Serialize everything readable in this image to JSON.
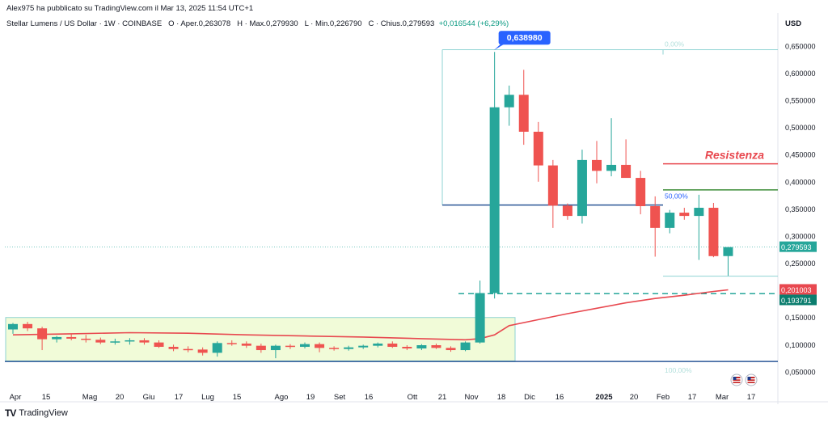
{
  "attribution": "Alex975 ha pubblicato su TradingView.com il Mar 13, 2025 11:54 UTC+1",
  "legend": {
    "symbol": "Stellar Lumens / US Dollar · 1W · COINBASE",
    "open": "O · Aper.0,263078",
    "high": "H · Max.0,279930",
    "low": "L · Min.0,226790",
    "close": "C · Chius.0,279593",
    "change": "+0,016544 (+6,29%)"
  },
  "axis_currency": "USD",
  "brand": "TradingView",
  "chart_data": {
    "type": "candlestick",
    "ylim": [
      0.035,
      0.675
    ],
    "y_ticks": [
      "0,650000",
      "0,600000",
      "0,550000",
      "0,500000",
      "0,450000",
      "0,400000",
      "0,350000",
      "0,300000",
      "0,250000",
      "0,200000",
      "0,150000",
      "0,100000",
      "0,050000"
    ],
    "x_labels": [
      "Apr",
      "15",
      "Mag",
      "20",
      "Giu",
      "17",
      "Lug",
      "15",
      "Ago",
      "19",
      "Set",
      "16",
      "Ott",
      "21",
      "Nov",
      "18",
      "Dic",
      "16",
      "2025",
      "20",
      "Feb",
      "17",
      "Mar",
      "17"
    ],
    "candles": [
      {
        "o": 0.128,
        "h": 0.14,
        "l": 0.12,
        "c": 0.138
      },
      {
        "o": 0.138,
        "h": 0.142,
        "l": 0.125,
        "c": 0.13
      },
      {
        "o": 0.13,
        "h": 0.133,
        "l": 0.09,
        "c": 0.11
      },
      {
        "o": 0.11,
        "h": 0.116,
        "l": 0.104,
        "c": 0.114
      },
      {
        "o": 0.114,
        "h": 0.12,
        "l": 0.108,
        "c": 0.111
      },
      {
        "o": 0.111,
        "h": 0.118,
        "l": 0.104,
        "c": 0.109
      },
      {
        "o": 0.109,
        "h": 0.113,
        "l": 0.101,
        "c": 0.104
      },
      {
        "o": 0.104,
        "h": 0.111,
        "l": 0.1,
        "c": 0.106
      },
      {
        "o": 0.106,
        "h": 0.112,
        "l": 0.1,
        "c": 0.108
      },
      {
        "o": 0.108,
        "h": 0.112,
        "l": 0.1,
        "c": 0.104
      },
      {
        "o": 0.104,
        "h": 0.108,
        "l": 0.094,
        "c": 0.096
      },
      {
        "o": 0.096,
        "h": 0.1,
        "l": 0.088,
        "c": 0.092
      },
      {
        "o": 0.092,
        "h": 0.097,
        "l": 0.086,
        "c": 0.091
      },
      {
        "o": 0.091,
        "h": 0.095,
        "l": 0.08,
        "c": 0.085
      },
      {
        "o": 0.085,
        "h": 0.106,
        "l": 0.078,
        "c": 0.103
      },
      {
        "o": 0.103,
        "h": 0.108,
        "l": 0.098,
        "c": 0.102
      },
      {
        "o": 0.102,
        "h": 0.106,
        "l": 0.094,
        "c": 0.098
      },
      {
        "o": 0.098,
        "h": 0.102,
        "l": 0.085,
        "c": 0.09
      },
      {
        "o": 0.09,
        "h": 0.1,
        "l": 0.075,
        "c": 0.098
      },
      {
        "o": 0.098,
        "h": 0.101,
        "l": 0.092,
        "c": 0.096
      },
      {
        "o": 0.096,
        "h": 0.104,
        "l": 0.093,
        "c": 0.101
      },
      {
        "o": 0.101,
        "h": 0.104,
        "l": 0.086,
        "c": 0.094
      },
      {
        "o": 0.094,
        "h": 0.097,
        "l": 0.089,
        "c": 0.092
      },
      {
        "o": 0.092,
        "h": 0.098,
        "l": 0.089,
        "c": 0.095
      },
      {
        "o": 0.095,
        "h": 0.1,
        "l": 0.092,
        "c": 0.098
      },
      {
        "o": 0.098,
        "h": 0.104,
        "l": 0.095,
        "c": 0.102
      },
      {
        "o": 0.102,
        "h": 0.106,
        "l": 0.094,
        "c": 0.096
      },
      {
        "o": 0.096,
        "h": 0.099,
        "l": 0.09,
        "c": 0.093
      },
      {
        "o": 0.093,
        "h": 0.101,
        "l": 0.09,
        "c": 0.099
      },
      {
        "o": 0.099,
        "h": 0.102,
        "l": 0.092,
        "c": 0.094
      },
      {
        "o": 0.094,
        "h": 0.097,
        "l": 0.087,
        "c": 0.09
      },
      {
        "o": 0.09,
        "h": 0.106,
        "l": 0.088,
        "c": 0.104
      },
      {
        "o": 0.104,
        "h": 0.218,
        "l": 0.102,
        "c": 0.195
      },
      {
        "o": 0.195,
        "h": 0.63898,
        "l": 0.185,
        "c": 0.537
      },
      {
        "o": 0.537,
        "h": 0.577,
        "l": 0.503,
        "c": 0.56
      },
      {
        "o": 0.56,
        "h": 0.606,
        "l": 0.468,
        "c": 0.492
      },
      {
        "o": 0.492,
        "h": 0.51,
        "l": 0.4,
        "c": 0.43
      },
      {
        "o": 0.43,
        "h": 0.44,
        "l": 0.315,
        "c": 0.356
      },
      {
        "o": 0.356,
        "h": 0.36,
        "l": 0.33,
        "c": 0.337
      },
      {
        "o": 0.337,
        "h": 0.459,
        "l": 0.323,
        "c": 0.44
      },
      {
        "o": 0.44,
        "h": 0.475,
        "l": 0.397,
        "c": 0.42
      },
      {
        "o": 0.42,
        "h": 0.517,
        "l": 0.41,
        "c": 0.431
      },
      {
        "o": 0.431,
        "h": 0.478,
        "l": 0.41,
        "c": 0.407
      },
      {
        "o": 0.407,
        "h": 0.42,
        "l": 0.34,
        "c": 0.355
      },
      {
        "o": 0.355,
        "h": 0.373,
        "l": 0.262,
        "c": 0.315
      },
      {
        "o": 0.315,
        "h": 0.348,
        "l": 0.305,
        "c": 0.343
      },
      {
        "o": 0.343,
        "h": 0.352,
        "l": 0.33,
        "c": 0.337
      },
      {
        "o": 0.337,
        "h": 0.376,
        "l": 0.256,
        "c": 0.352
      },
      {
        "o": 0.352,
        "h": 0.361,
        "l": 0.261,
        "c": 0.263
      },
      {
        "o": 0.263078,
        "h": 0.27993,
        "l": 0.22679,
        "c": 0.279593
      }
    ],
    "moving_average": [
      [
        0,
        0.118
      ],
      [
        4,
        0.12
      ],
      [
        8,
        0.122
      ],
      [
        12,
        0.121
      ],
      [
        16,
        0.118
      ],
      [
        20,
        0.116
      ],
      [
        24,
        0.114
      ],
      [
        28,
        0.111
      ],
      [
        31,
        0.109
      ],
      [
        32,
        0.111
      ],
      [
        33,
        0.118
      ],
      [
        34,
        0.135
      ],
      [
        36,
        0.146
      ],
      [
        38,
        0.157
      ],
      [
        40,
        0.167
      ],
      [
        42,
        0.177
      ],
      [
        44,
        0.185
      ],
      [
        46,
        0.191
      ],
      [
        48,
        0.198
      ],
      [
        49,
        0.201003
      ]
    ],
    "tags": {
      "current_price": "0,279593",
      "ma_value": "0,201003",
      "support_value": "0,193791",
      "high_callout": "0,638980"
    },
    "annotations": {
      "resistance_label": "Resistenza",
      "fib_0": "0,00%",
      "fib_50": "50,00%",
      "fib_100": "100,00%"
    },
    "levels": {
      "resistance": 0.433,
      "upper_green": 0.385,
      "mid_blue": 0.357,
      "support_dashed": 0.193791,
      "bottom_blue": 0.069,
      "fib_top": 0.643,
      "fib_low": 0.226,
      "current_price": 0.279593
    },
    "range_box": {
      "y_top": 0.15,
      "y_bottom": 0.07
    },
    "colors": {
      "up": "#26a69a",
      "down": "#ef5350",
      "ma": "#e8484f",
      "resistance": "#e8484f",
      "green_line": "#3e8e3a",
      "blue_line": "#2b5797",
      "support": "#26a69a",
      "fib": "#8fd3d3",
      "box_fill": "#f1fbd8",
      "box_stroke": "#8fd3d3",
      "callout": "#2962ff"
    }
  }
}
